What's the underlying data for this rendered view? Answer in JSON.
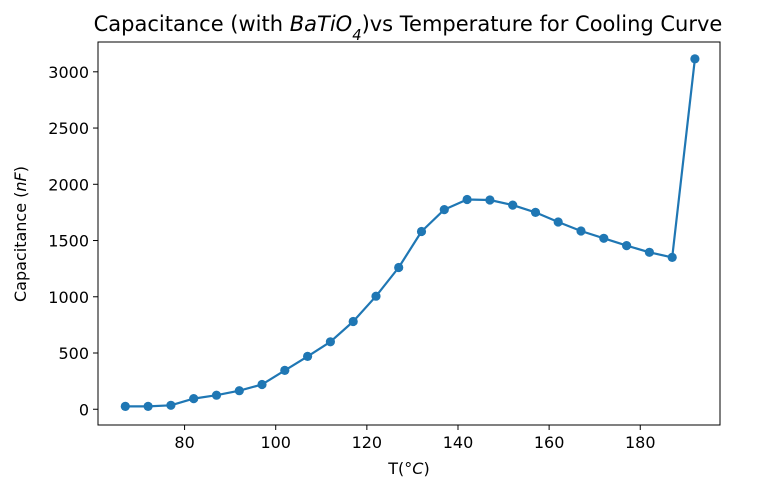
{
  "chart_data": {
    "type": "line",
    "title_parts": [
      {
        "text": "Capacitance (with ",
        "italic": false
      },
      {
        "text": "BaTiO",
        "italic": true
      },
      {
        "text": "4",
        "italic": true,
        "sub": true
      },
      {
        "text": ")vs Temperature for Cooling Curve",
        "italic": false
      }
    ],
    "xlabel_parts": [
      {
        "text": "T(°",
        "italic": false
      },
      {
        "text": "C",
        "italic": true
      },
      {
        "text": ")",
        "italic": false
      }
    ],
    "ylabel_parts": [
      {
        "text": "Capacitance (",
        "italic": false
      },
      {
        "text": "nF",
        "italic": true
      },
      {
        "text": ")",
        "italic": false
      }
    ],
    "xlim": [
      61,
      197.5
    ],
    "ylim": [
      -140,
      3265
    ],
    "xticks": [
      80,
      100,
      120,
      140,
      160,
      180
    ],
    "yticks": [
      0,
      500,
      1000,
      1500,
      2000,
      2500,
      3000
    ],
    "grid": false,
    "marker": "circle",
    "color": "#1f77b4",
    "series": [
      {
        "x": [
          67,
          72,
          77,
          82,
          87,
          92,
          97,
          102,
          107,
          112,
          117,
          122,
          127,
          132,
          137,
          142,
          147,
          152,
          157,
          162,
          167,
          172,
          177,
          182,
          187,
          192
        ],
        "y": [
          25,
          25,
          35,
          95,
          125,
          165,
          220,
          345,
          470,
          600,
          780,
          1005,
          1260,
          1580,
          1775,
          1865,
          1860,
          1815,
          1750,
          1665,
          1585,
          1520,
          1455,
          1395,
          1350,
          3115
        ]
      }
    ]
  }
}
